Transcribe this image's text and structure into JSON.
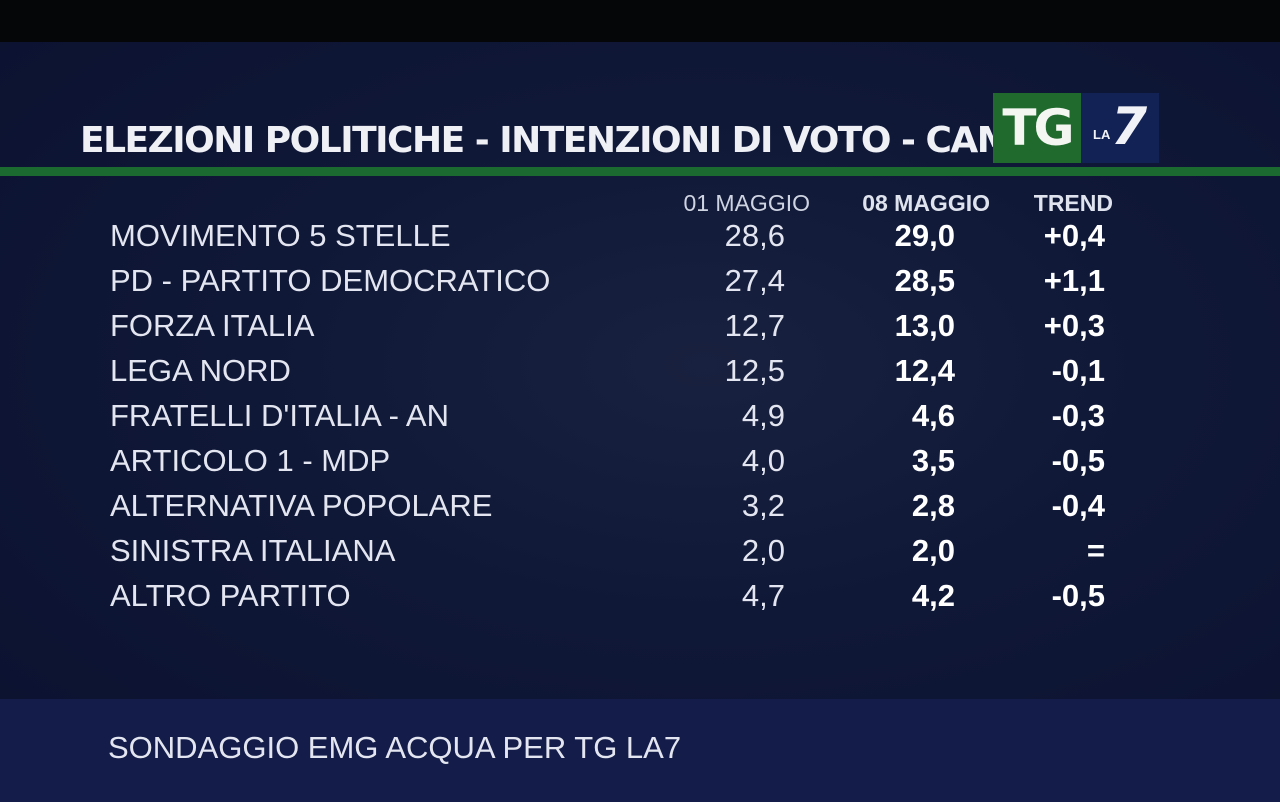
{
  "header": {
    "title": "ELEZIONI POLITICHE - INTENZIONI DI VOTO - CAMERA",
    "logo_tg": "TG",
    "logo_la": "LA",
    "logo_7": "7"
  },
  "chart_data": {
    "type": "table",
    "columns": [
      "01 MAGGIO",
      "08 MAGGIO",
      "TREND"
    ],
    "rows": [
      {
        "party": "MOVIMENTO 5 STELLE",
        "v1": "28,6",
        "v2": "29,0",
        "trend": "+0,4"
      },
      {
        "party": "PD - PARTITO DEMOCRATICO",
        "v1": "27,4",
        "v2": "28,5",
        "trend": "+1,1"
      },
      {
        "party": "FORZA ITALIA",
        "v1": "12,7",
        "v2": "13,0",
        "trend": "+0,3"
      },
      {
        "party": "LEGA NORD",
        "v1": "12,5",
        "v2": "12,4",
        "trend": "-0,1"
      },
      {
        "party": "FRATELLI D'ITALIA - AN",
        "v1": "4,9",
        "v2": "4,6",
        "trend": "-0,3"
      },
      {
        "party": "ARTICOLO 1 - MDP",
        "v1": "4,0",
        "v2": "3,5",
        "trend": "-0,5"
      },
      {
        "party": "ALTERNATIVA POPOLARE",
        "v1": "3,2",
        "v2": "2,8",
        "trend": "-0,4"
      },
      {
        "party": "SINISTRA ITALIANA",
        "v1": "2,0",
        "v2": "2,0",
        "trend": "="
      },
      {
        "party": "ALTRO PARTITO",
        "v1": "4,7",
        "v2": "4,2",
        "trend": "-0,5"
      }
    ]
  },
  "footer": {
    "source": "SONDAGGIO EMG ACQUA PER TG LA7"
  },
  "colors": {
    "background": "#101838",
    "accent_green": "#1b6a2f",
    "footer_band": "#141d4a"
  }
}
